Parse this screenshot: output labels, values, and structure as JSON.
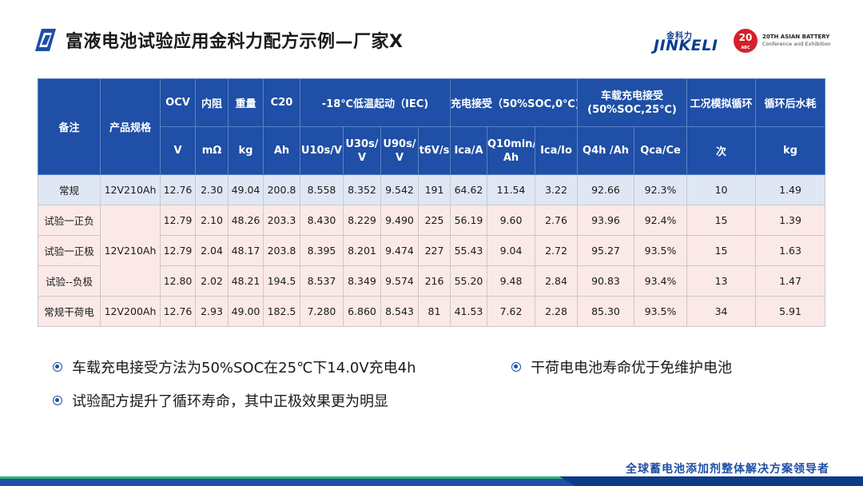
{
  "title": "富液电池试验应用金科力配方示例—厂家X",
  "logos": {
    "jinkeli_cn": "金科力",
    "jinkeli_en": "JINKELI",
    "abc_number": "20",
    "abc_small": "ABC",
    "abc_line1": "20TH ASIAN BATTERY",
    "abc_line2": "Conference and Exhibition"
  },
  "table": {
    "header_top": {
      "note": "备注",
      "spec": "产品规格",
      "ocv": "OCV",
      "resistance": "内阻",
      "weight": "重量",
      "c20": "C20",
      "cold_start": "-18℃低温起动（IEC)",
      "charge_accept": "充电接受（50%SOC,0℃)",
      "vehicle_charge": "车载充电接受\n(50%SOC,25℃)",
      "cycle": "工况模拟循环",
      "water_loss": "循环后水耗"
    },
    "header_units": {
      "ocv": "V",
      "resistance": "mΩ",
      "weight": "kg",
      "c20": "Ah",
      "u10s": "U10s/V",
      "u30s": "U30s/\nV",
      "u90s": "U90s/\nV",
      "t6v": "t6V/s",
      "ica": "Ica/A",
      "q10min": "Q10min/\nAh",
      "ica_io": "Ica/Io",
      "q4h": "Q4h\n/Ah",
      "qca_ce": "Qca/Ce",
      "cycles": "次",
      "water": "kg"
    },
    "rows": [
      {
        "note": "常规",
        "spec": "12V210Ah",
        "vals": [
          "12.76",
          "2.30",
          "49.04",
          "200.8",
          "8.558",
          "8.352",
          "9.542",
          "191",
          "64.62",
          "11.54",
          "3.22",
          "92.66",
          "92.3%",
          "10",
          "1.49"
        ]
      },
      {
        "note": "试验一正负",
        "spec": "12V210Ah",
        "vals": [
          "12.79",
          "2.10",
          "48.26",
          "203.3",
          "8.430",
          "8.229",
          "9.490",
          "225",
          "56.19",
          "9.60",
          "2.76",
          "93.96",
          "92.4%",
          "15",
          "1.39"
        ]
      },
      {
        "note": "试验一正极",
        "spec": "",
        "vals": [
          "12.79",
          "2.04",
          "48.17",
          "203.8",
          "8.395",
          "8.201",
          "9.474",
          "227",
          "55.43",
          "9.04",
          "2.72",
          "95.27",
          "93.5%",
          "15",
          "1.63"
        ]
      },
      {
        "note": "试验--负极",
        "spec": "",
        "vals": [
          "12.80",
          "2.02",
          "48.21",
          "194.5",
          "8.537",
          "8.349",
          "9.574",
          "216",
          "55.20",
          "9.48",
          "2.84",
          "90.83",
          "93.4%",
          "13",
          "1.47"
        ]
      },
      {
        "note": "常规干荷电",
        "spec": "12V200Ah",
        "vals": [
          "12.76",
          "2.93",
          "49.00",
          "182.5",
          "7.280",
          "6.860",
          "8.543",
          "81",
          "41.53",
          "7.62",
          "2.28",
          "85.30",
          "93.5%",
          "34",
          "5.91"
        ]
      }
    ]
  },
  "bullets": {
    "b1": "车载充电接受方法为50%SOC在25℃下14.0V充电4h",
    "b2": "试验配方提升了循环寿命，其中正极效果更为明显",
    "b3": "干荷电电池寿命优于免维护电池"
  },
  "footer": "全球蓄电池添加剂整体解决方案领导者",
  "colors": {
    "header_blue": "#1f4fa6",
    "row_blue": "#dfe7f4",
    "row_pink": "#fbe9e7",
    "accent_red": "#d6202a"
  }
}
